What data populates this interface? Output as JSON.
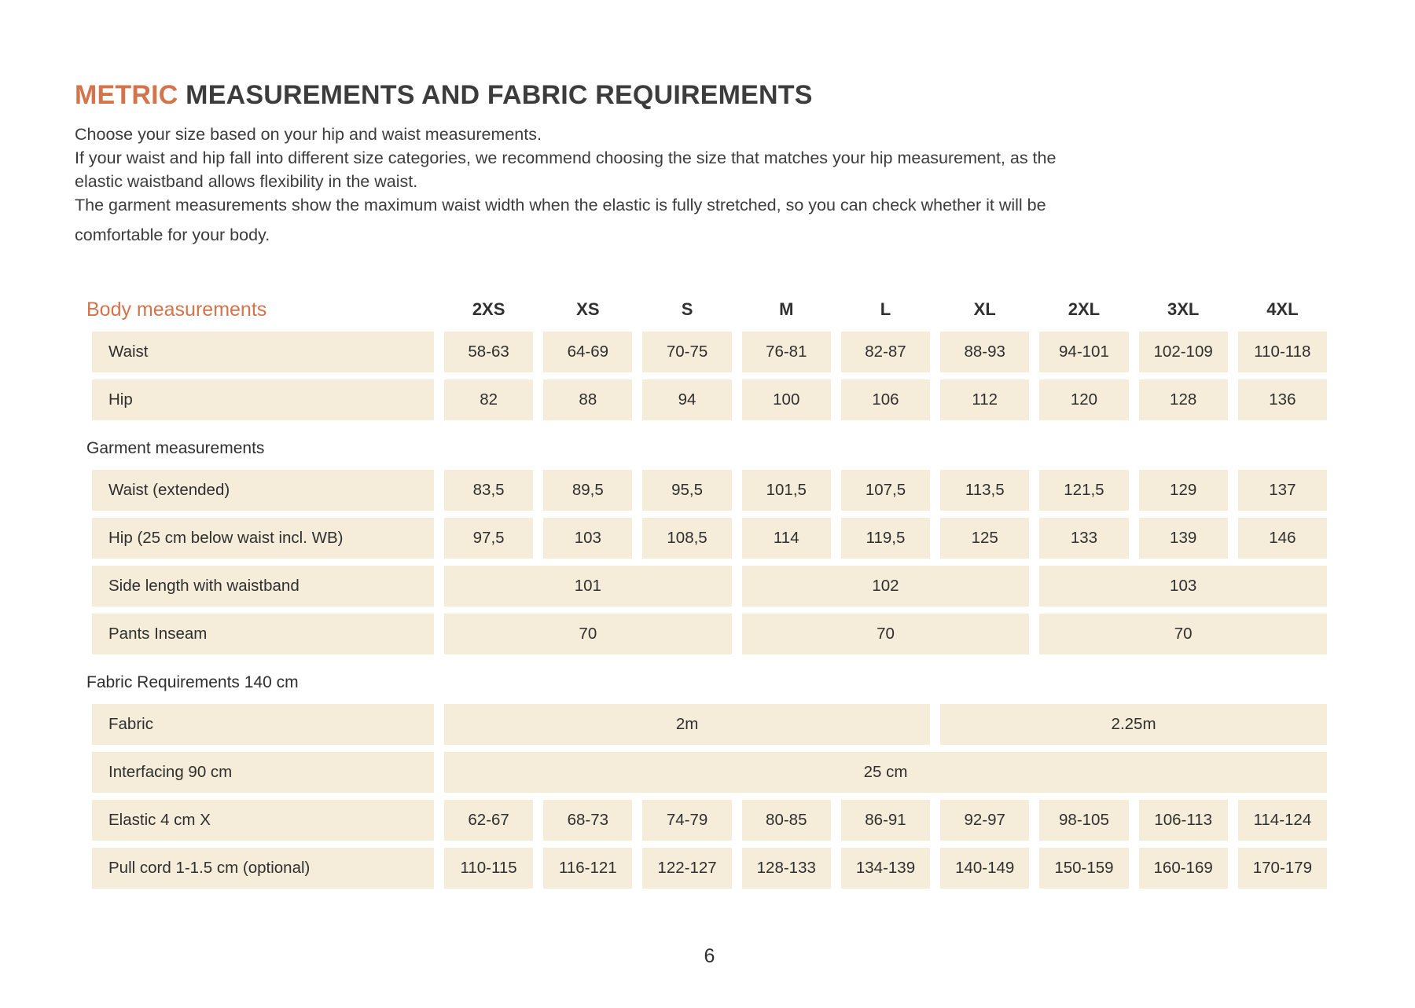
{
  "colors": {
    "accent": "#d2744c",
    "cell_bg": "#f5edda",
    "text": "#3a3a3a"
  },
  "page": {
    "title_accent": "METRIC",
    "title_rest": " MEASUREMENTS AND FABRIC REQUIREMENTS",
    "intro_lines": [
      "Choose your size based on your hip and waist measurements.",
      "If your waist and hip fall into different size categories, we recommend choosing the size that matches your hip measurement, as the",
      "elastic waistband allows flexibility in the waist.",
      "The garment measurements show the maximum waist width when the elastic is fully stretched, so you can check whether it will be",
      "comfortable for your body."
    ],
    "page_number": "6"
  },
  "table": {
    "header_label": "Body measurements",
    "size_headers": [
      "2XS",
      "XS",
      "S",
      "M",
      "L",
      "XL",
      "2XL",
      "3XL",
      "4XL"
    ],
    "rows": [
      {
        "type": "data",
        "label": "Waist",
        "values": [
          "58-63",
          "64-69",
          "70-75",
          "76-81",
          "82-87",
          "88-93",
          "94-101",
          "102-109",
          "110-118"
        ]
      },
      {
        "type": "data",
        "label": "Hip",
        "values": [
          "82",
          "88",
          "94",
          "100",
          "106",
          "112",
          "120",
          "128",
          "136"
        ]
      },
      {
        "type": "section",
        "label": "Garment measurements"
      },
      {
        "type": "data",
        "label": "Waist (extended)",
        "values": [
          "83,5",
          "89,5",
          "95,5",
          "101,5",
          "107,5",
          "113,5",
          "121,5",
          "129",
          "137"
        ]
      },
      {
        "type": "data",
        "label": "Hip (25 cm below waist incl. WB)",
        "values": [
          "97,5",
          "103",
          "108,5",
          "114",
          "119,5",
          "125",
          "133",
          "139",
          "146"
        ]
      },
      {
        "type": "merged",
        "label": "Side length with waistband",
        "cells": [
          {
            "span": 3,
            "value": "101"
          },
          {
            "span": 3,
            "value": "102"
          },
          {
            "span": 3,
            "value": "103"
          }
        ]
      },
      {
        "type": "merged",
        "label": "Pants Inseam",
        "cells": [
          {
            "span": 3,
            "value": "70"
          },
          {
            "span": 3,
            "value": "70"
          },
          {
            "span": 3,
            "value": "70"
          }
        ]
      },
      {
        "type": "section",
        "label": "Fabric Requirements 140 cm"
      },
      {
        "type": "merged",
        "label": "Fabric",
        "cells": [
          {
            "span": 5,
            "value": "2m"
          },
          {
            "span": 4,
            "value": "2.25m"
          }
        ]
      },
      {
        "type": "merged",
        "label": "Interfacing 90 cm",
        "cells": [
          {
            "span": 9,
            "value": "25 cm"
          }
        ]
      },
      {
        "type": "data",
        "label": "Elastic 4 cm X",
        "values": [
          "62-67",
          "68-73",
          "74-79",
          "80-85",
          "86-91",
          "92-97",
          "98-105",
          "106-113",
          "114-124"
        ]
      },
      {
        "type": "data",
        "label": "Pull cord 1-1.5 cm (optional)",
        "values": [
          "110-115",
          "116-121",
          "122-127",
          "128-133",
          "134-139",
          "140-149",
          "150-159",
          "160-169",
          "170-179"
        ]
      }
    ]
  }
}
